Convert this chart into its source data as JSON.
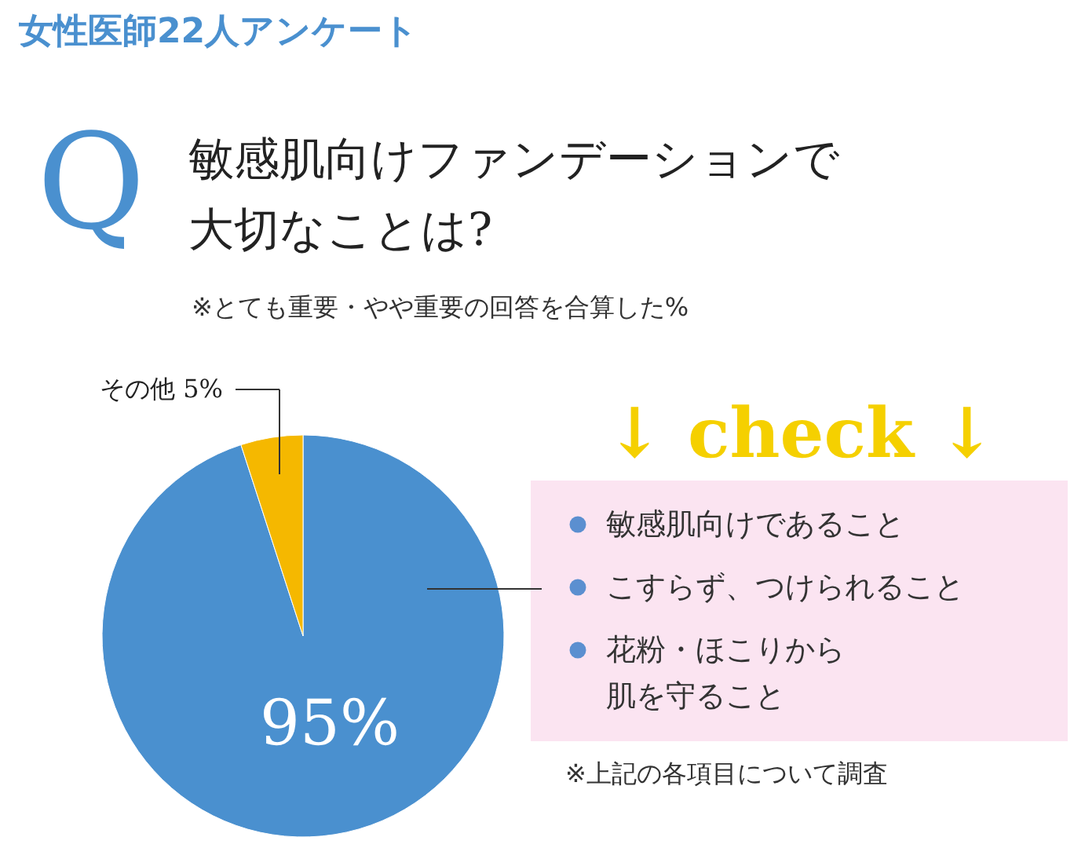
{
  "chart_data": {
    "type": "pie",
    "title": "女性医師22人アンケート",
    "subtitle": "敏感肌向けファンデーションで大切なことは?",
    "categories": [
      null,
      "その他"
    ],
    "values": [
      95,
      5
    ],
    "colors": [
      "#4a90cf",
      "#f5b800"
    ],
    "value_labels": [
      "95%",
      "5%"
    ],
    "annotations": [
      "Q",
      "※とても重要・やや重要の回答を合算した%",
      "↓ check ↓",
      "敏感肌向けであること",
      "こすらず、つけられること",
      "花粉・ほこりから肌を守ること",
      "※上記の各項目について調査"
    ]
  }
}
